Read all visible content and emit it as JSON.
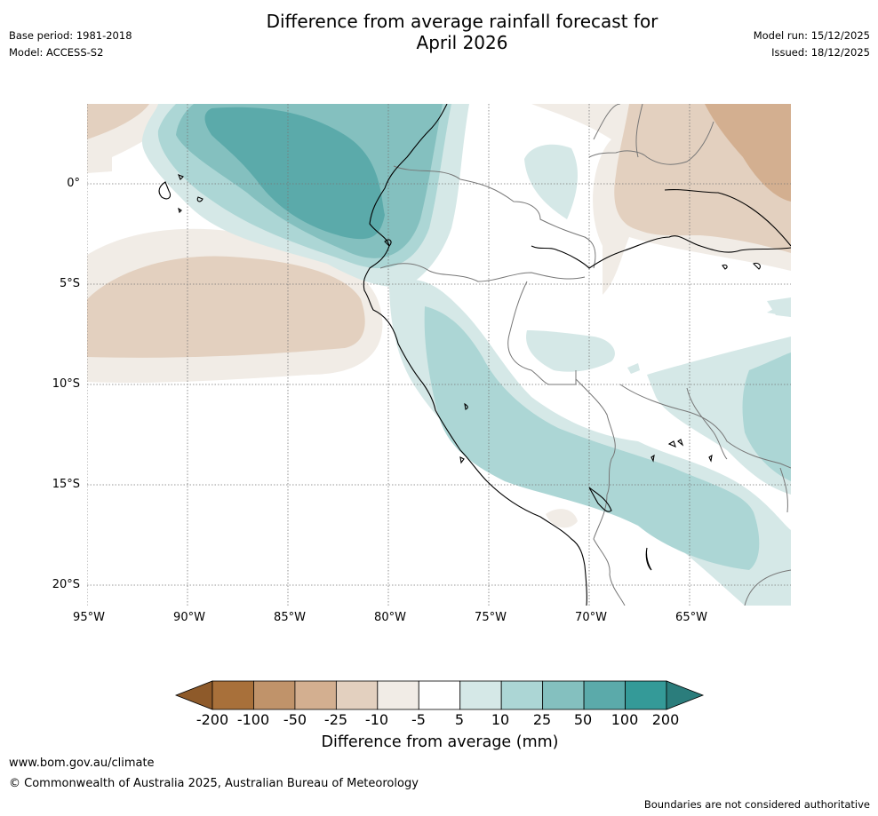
{
  "header": {
    "title_line1": "Difference from average rainfall forecast for",
    "title_line2": "April 2026",
    "base_period": "Base period: 1981-2018",
    "model": "Model: ACCESS-S2",
    "model_run": "Model run: 15/12/2025",
    "issued": "Issued: 18/12/2025"
  },
  "map": {
    "lat_labels": [
      "0°",
      "5°S",
      "10°S",
      "15°S",
      "20°S"
    ],
    "lon_labels": [
      "95°W",
      "90°W",
      "85°W",
      "80°W",
      "75°W",
      "70°W",
      "65°W"
    ]
  },
  "colorbar": {
    "labels": [
      "-200",
      "-100",
      "-50",
      "-25",
      "-10",
      "-5",
      "5",
      "10",
      "25",
      "50",
      "100",
      "200"
    ],
    "colors": [
      "#a8703a",
      "#c0936a",
      "#d3af90",
      "#e3d0bf",
      "#f1ece6",
      "#ffffff",
      "#d5e8e7",
      "#acd6d5",
      "#84c0bf",
      "#5baaaa",
      "#349a98"
    ],
    "under_color": "#8e5a2a",
    "over_color": "#2b7d7c",
    "title": "Difference from average (mm)"
  },
  "footer": {
    "website": "www.bom.gov.au/climate",
    "copyright": "© Commonwealth of Australia 2025, Australian Bureau of Meteorology",
    "disclaimer": "Boundaries are not considered authoritative"
  }
}
